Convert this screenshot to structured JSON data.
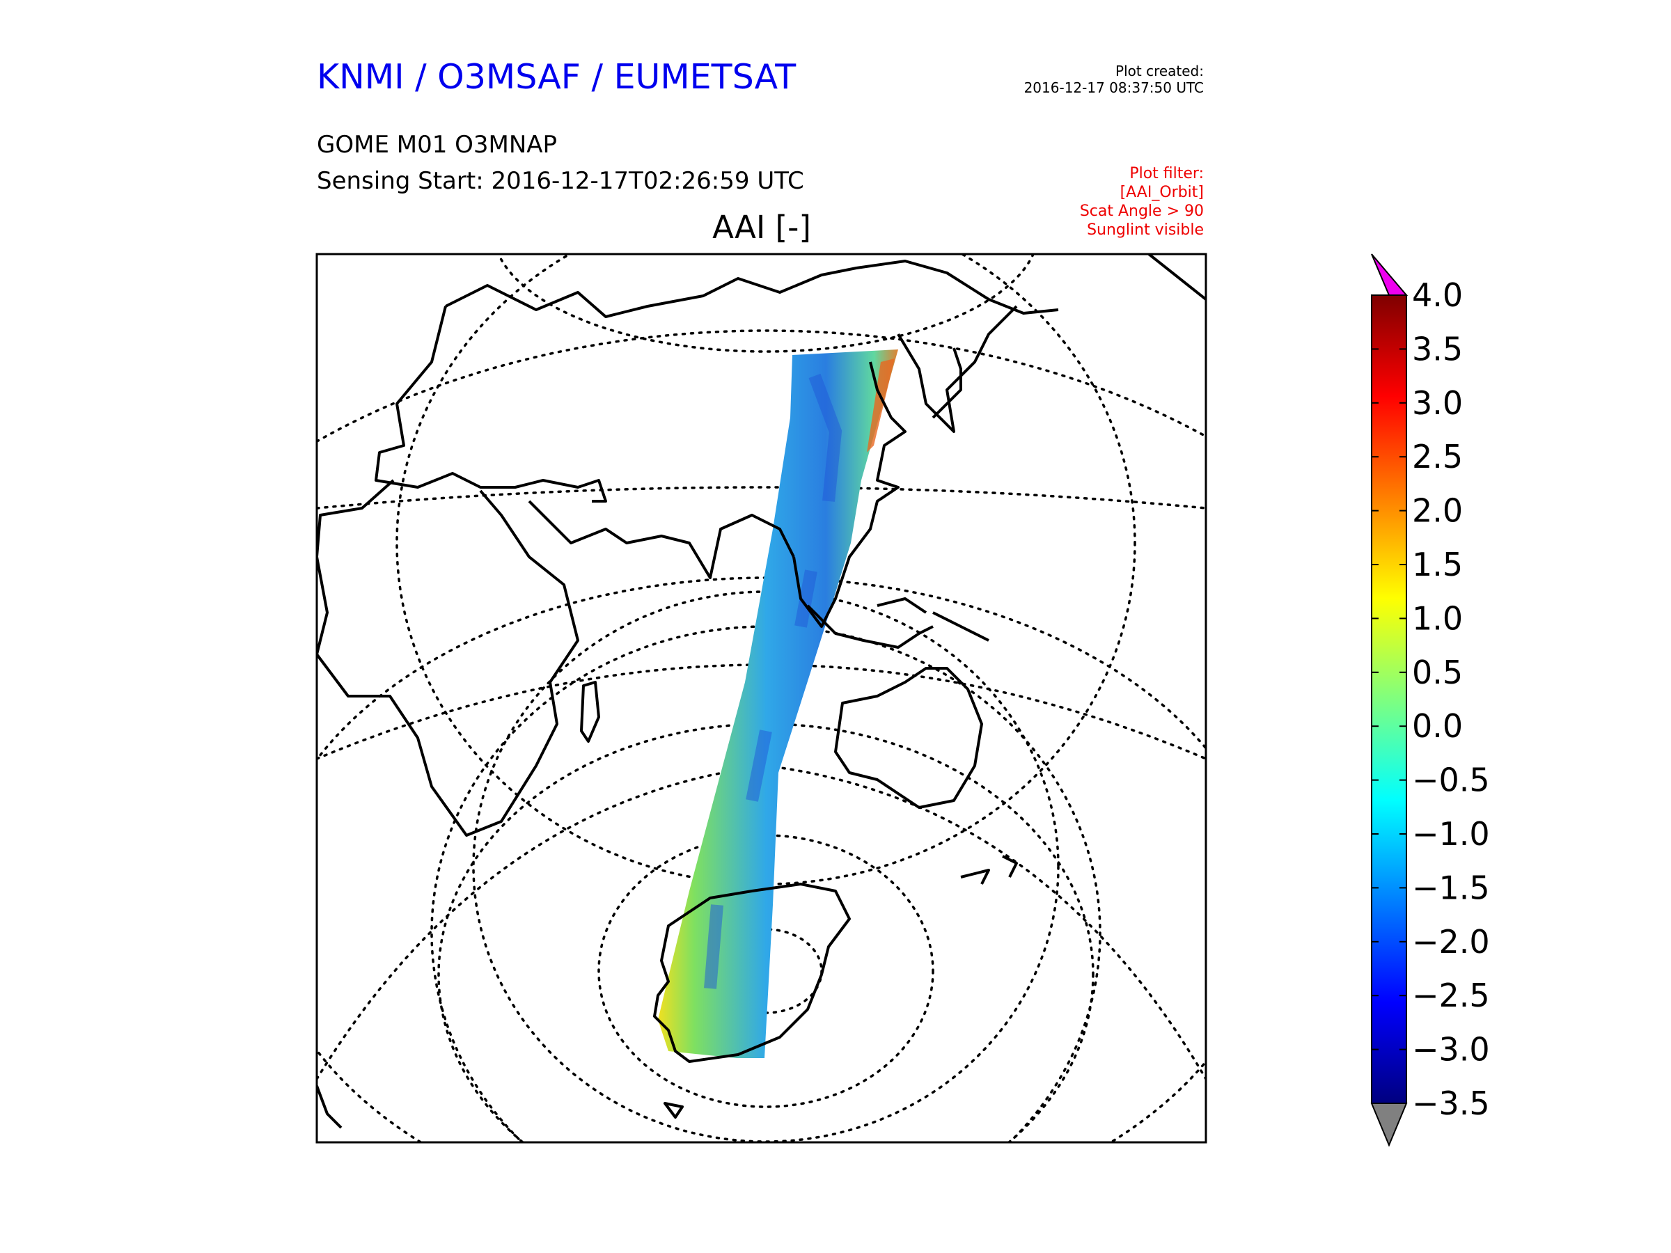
{
  "header": {
    "organization": "KNMI / O3MSAF / EUMETSAT",
    "product": "GOME M01 O3MNAP",
    "sensing_start": "Sensing Start: 2016-12-17T02:26:59 UTC",
    "plot_created_label": "Plot created:",
    "plot_created_time": "2016-12-17 08:37:50 UTC",
    "filter_lines": [
      "Plot filter:",
      "[AAI_Orbit]",
      "Scat Angle > 90",
      "Sunglint visible"
    ]
  },
  "map": {
    "title": "AAI [-]",
    "projection": "azimuthal",
    "features": [
      "coastline",
      "graticule",
      "orbit-swath"
    ]
  },
  "colorbar": {
    "min": -3.5,
    "max": 4.0,
    "ticks": [
      4.0,
      3.5,
      3.0,
      2.5,
      2.0,
      1.5,
      1.0,
      0.5,
      0.0,
      -0.5,
      -1.0,
      -1.5,
      -2.0,
      -2.5,
      -3.0,
      -3.5
    ],
    "tick_labels": [
      "4.0",
      "3.5",
      "3.0",
      "2.5",
      "2.0",
      "1.5",
      "1.0",
      "0.5",
      "0.0",
      "−0.5",
      "−1.0",
      "−1.5",
      "−2.0",
      "−2.5",
      "−3.0",
      "−3.5"
    ],
    "over_color": "#ee00ee",
    "under_color": "#808080",
    "colormap": [
      "#00007f",
      "#0000ff",
      "#007fff",
      "#00ffff",
      "#7fff7f",
      "#ffff00",
      "#ff7f00",
      "#ff0000",
      "#7f0000"
    ]
  }
}
